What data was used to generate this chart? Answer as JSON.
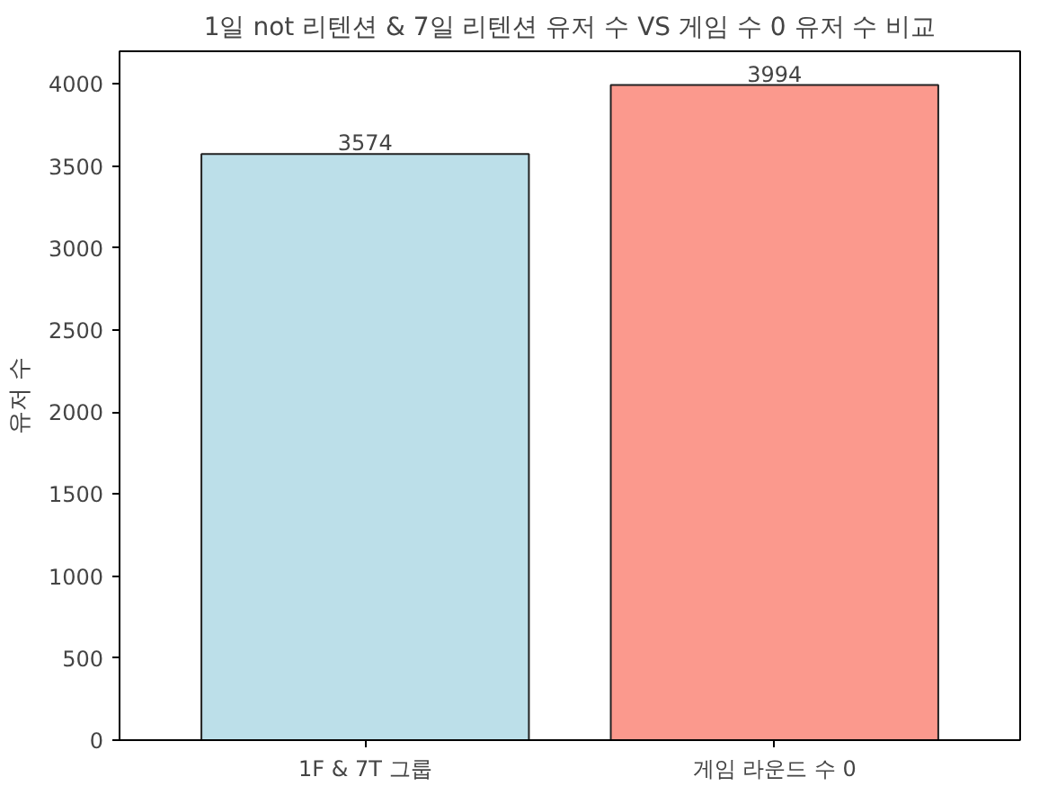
{
  "chart_data": {
    "type": "bar",
    "title": "1일 not 리텐션 & 7일 리텐션 유저 수 VS 게임 수 0 유저 수 비교",
    "categories": [
      "1F & 7T 그룹",
      "게임 라운드 수 0"
    ],
    "values": [
      3574,
      3994
    ],
    "colors": [
      "#bcdfe9",
      "#fb998d"
    ],
    "ylabel": "유저 수",
    "ylim": [
      0,
      4200
    ],
    "yticks": [
      0,
      500,
      1000,
      1500,
      2000,
      2500,
      3000,
      3500,
      4000
    ],
    "data_labels": true,
    "grid": false
  }
}
